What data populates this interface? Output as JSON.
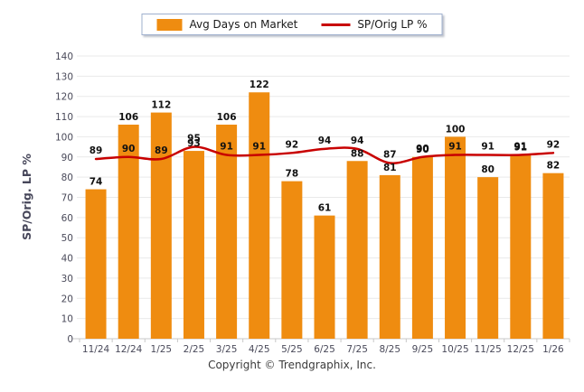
{
  "legend": {
    "bar_label": "Avg Days on Market",
    "line_label": "SP/Orig LP %"
  },
  "y_axis_title": "SP/Orig. LP %",
  "footer": {
    "copyright": "Copyright © Trendgraphix, Inc."
  },
  "colors": {
    "bar": "#EF8C10",
    "line": "#C80000",
    "grid": "#E9E9E9",
    "baseline": "#C8C8C8",
    "tick": "#C8C8C8",
    "axis_text": "#4A4A5A",
    "axis_title_text": "#47475A",
    "value_label_text": "#111111"
  },
  "chart_data": {
    "type": "bar+line",
    "title": "",
    "xlabel": "",
    "ylabel": "SP/Orig. LP %",
    "ylim": [
      0,
      140
    ],
    "ytick_step": 10,
    "grid": true,
    "legend_position": "top-center",
    "data_labels": true,
    "categories": [
      "11/24",
      "12/24",
      "1/25",
      "2/25",
      "3/25",
      "4/25",
      "5/25",
      "6/25",
      "7/25",
      "8/25",
      "9/25",
      "10/25",
      "11/25",
      "12/25",
      "1/26"
    ],
    "series": [
      {
        "name": "Avg Days on Market",
        "type": "bar",
        "values": [
          74,
          106,
          112,
          93,
          106,
          122,
          78,
          61,
          88,
          81,
          90,
          100,
          80,
          91,
          82
        ]
      },
      {
        "name": "SP/Orig LP %",
        "type": "line",
        "values": [
          89,
          90,
          89,
          95,
          91,
          91,
          92,
          94,
          94,
          87,
          90,
          91,
          91,
          91,
          92
        ]
      }
    ]
  }
}
